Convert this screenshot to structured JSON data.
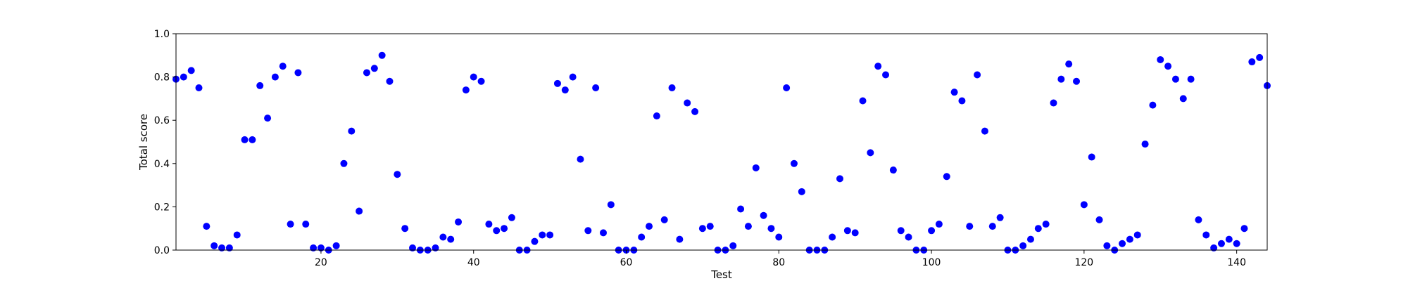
{
  "chart_data": {
    "type": "scatter",
    "xlabel": "Test",
    "ylabel": "Total score",
    "xlim": [
      1,
      144
    ],
    "ylim": [
      0,
      1.0
    ],
    "xticks": [
      20,
      40,
      60,
      80,
      100,
      120,
      140
    ],
    "xtick_labels": [
      "20",
      "40",
      "60",
      "80",
      "100",
      "120",
      "140"
    ],
    "yticks": [
      0,
      0.2,
      0.4,
      0.6,
      0.8,
      1.0
    ],
    "ytick_labels": [
      "0.0",
      "0.2",
      "0.4",
      "0.6",
      "0.8",
      "1.0"
    ],
    "grid": false,
    "marker_color": "#0000ff",
    "series": [
      {
        "x": [
          1,
          2,
          3,
          4,
          5,
          6,
          7,
          8,
          9,
          10,
          11,
          12,
          13,
          14,
          15,
          16,
          17,
          18,
          19,
          20,
          21,
          22,
          23,
          24,
          25,
          26,
          27,
          28,
          29,
          30,
          31,
          32,
          33,
          34,
          35,
          36,
          37,
          38,
          39,
          40,
          41,
          42,
          43,
          44,
          45,
          46,
          47,
          48,
          49,
          50,
          51,
          52,
          53,
          54,
          55,
          56,
          57,
          58,
          59,
          60,
          61,
          62,
          63,
          64,
          65,
          66,
          67,
          68,
          69,
          70,
          71,
          72,
          73,
          74,
          75,
          76,
          77,
          78,
          79,
          80,
          81,
          82,
          83,
          84,
          85,
          86,
          87,
          88,
          89,
          90,
          91,
          92,
          93,
          94,
          95,
          96,
          97,
          98,
          99,
          100,
          101,
          102,
          103,
          104,
          105,
          106,
          107,
          108,
          109,
          110,
          111,
          112,
          113,
          114,
          115,
          116,
          117,
          118,
          119,
          120,
          121,
          122,
          123,
          124,
          125,
          126,
          127,
          128,
          129,
          130,
          131,
          132,
          133,
          134,
          135,
          136,
          137,
          138,
          139,
          140,
          141,
          142,
          143,
          144
        ],
        "y": [
          0.79,
          0.8,
          0.83,
          0.75,
          0.11,
          0.02,
          0.01,
          0.01,
          0.07,
          0.51,
          0.51,
          0.76,
          0.61,
          0.8,
          0.85,
          0.12,
          0.82,
          0.12,
          0.01,
          0.01,
          0.0,
          0.02,
          0.4,
          0.55,
          0.18,
          0.82,
          0.84,
          0.9,
          0.78,
          0.35,
          0.1,
          0.01,
          0.0,
          0.0,
          0.01,
          0.06,
          0.05,
          0.13,
          0.74,
          0.8,
          0.78,
          0.12,
          0.09,
          0.1,
          0.15,
          0.0,
          0.0,
          0.04,
          0.07,
          0.07,
          0.77,
          0.74,
          0.8,
          0.42,
          0.09,
          0.75,
          0.08,
          0.21,
          0.0,
          0.0,
          0.0,
          0.06,
          0.11,
          0.62,
          0.14,
          0.75,
          0.05,
          0.68,
          0.64,
          0.1,
          0.11,
          0.0,
          0.0,
          0.02,
          0.19,
          0.11,
          0.38,
          0.16,
          0.1,
          0.06,
          0.75,
          0.4,
          0.27,
          0.0,
          0.0,
          0.0,
          0.06,
          0.33,
          0.09,
          0.08,
          0.69,
          0.45,
          0.85,
          0.81,
          0.37,
          0.09,
          0.06,
          0.0,
          0.0,
          0.09,
          0.12,
          0.34,
          0.73,
          0.69,
          0.11,
          0.81,
          0.55,
          0.11,
          0.15,
          0.0,
          0.0,
          0.02,
          0.05,
          0.1,
          0.12,
          0.68,
          0.79,
          0.86,
          0.78,
          0.21,
          0.43,
          0.14,
          0.02,
          0.0,
          0.03,
          0.05,
          0.07,
          0.49,
          0.67,
          0.88,
          0.85,
          0.79,
          0.7,
          0.79,
          0.14,
          0.07,
          0.01,
          0.03,
          0.05,
          0.03,
          0.1,
          0.87,
          0.89,
          0.76
        ]
      }
    ]
  }
}
